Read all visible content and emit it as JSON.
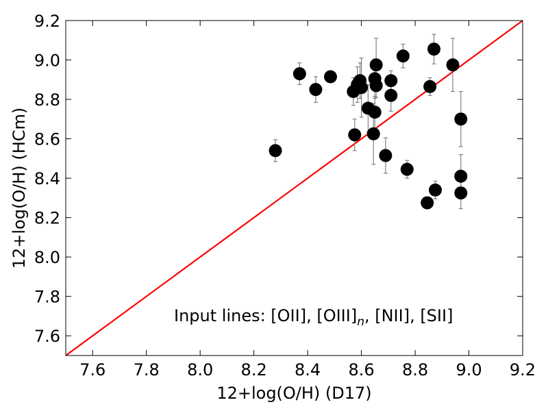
{
  "chart_data": {
    "type": "scatter",
    "title": "",
    "xlabel": "12+log(O/H) (D17)",
    "ylabel": "12+log(O/H) (HCm)",
    "xlim": [
      7.5,
      9.2
    ],
    "ylim": [
      7.5,
      9.2
    ],
    "xticks": [
      "7.6",
      "7.8",
      "8.0",
      "8.2",
      "8.4",
      "8.6",
      "8.8",
      "9.0",
      "9.2"
    ],
    "yticks": [
      "7.6",
      "7.8",
      "8.0",
      "8.2",
      "8.4",
      "8.6",
      "8.8",
      "9.0",
      "9.2"
    ],
    "grid": false,
    "annotation": {
      "prefix": "Input lines: [OII], [OIII]",
      "subscript": "n",
      "suffix": ", [NII], [SII]"
    },
    "reference_line": {
      "x": [
        7.5,
        9.2
      ],
      "y": [
        7.5,
        9.2
      ],
      "color": "#ff0000"
    },
    "marker_color": "#000000",
    "errorbar_color": "#808080",
    "points": [
      {
        "x": 8.28,
        "y": 8.54,
        "err": 0.055
      },
      {
        "x": 8.37,
        "y": 8.93,
        "err": 0.055
      },
      {
        "x": 8.43,
        "y": 8.85,
        "err": 0.065
      },
      {
        "x": 8.485,
        "y": 8.915,
        "err": 0.0
      },
      {
        "x": 8.57,
        "y": 8.84,
        "err": 0.07
      },
      {
        "x": 8.575,
        "y": 8.62,
        "err": 0.08
      },
      {
        "x": 8.585,
        "y": 8.875,
        "err": 0.09
      },
      {
        "x": 8.595,
        "y": 8.895,
        "err": 0.09
      },
      {
        "x": 8.6,
        "y": 8.86,
        "err": 0.15
      },
      {
        "x": 8.625,
        "y": 8.755,
        "err": 0.12
      },
      {
        "x": 8.645,
        "y": 8.625,
        "err": 0.155
      },
      {
        "x": 8.65,
        "y": 8.905,
        "err": 0.1
      },
      {
        "x": 8.65,
        "y": 8.735,
        "err": 0.08
      },
      {
        "x": 8.655,
        "y": 8.975,
        "err": 0.135
      },
      {
        "x": 8.655,
        "y": 8.87,
        "err": 0.06
      },
      {
        "x": 8.69,
        "y": 8.515,
        "err": 0.09
      },
      {
        "x": 8.71,
        "y": 8.895,
        "err": 0.05
      },
      {
        "x": 8.71,
        "y": 8.82,
        "err": 0.08
      },
      {
        "x": 8.755,
        "y": 9.02,
        "err": 0.06
      },
      {
        "x": 8.77,
        "y": 8.445,
        "err": 0.045
      },
      {
        "x": 8.845,
        "y": 8.275,
        "err": 0.025
      },
      {
        "x": 8.855,
        "y": 8.865,
        "err": 0.045
      },
      {
        "x": 8.87,
        "y": 9.055,
        "err": 0.075
      },
      {
        "x": 8.875,
        "y": 8.34,
        "err": 0.045
      },
      {
        "x": 8.94,
        "y": 8.975,
        "err": 0.135
      },
      {
        "x": 8.97,
        "y": 8.7,
        "err": 0.14
      },
      {
        "x": 8.97,
        "y": 8.41,
        "err": 0.11
      },
      {
        "x": 8.97,
        "y": 8.325,
        "err": 0.08
      }
    ]
  }
}
